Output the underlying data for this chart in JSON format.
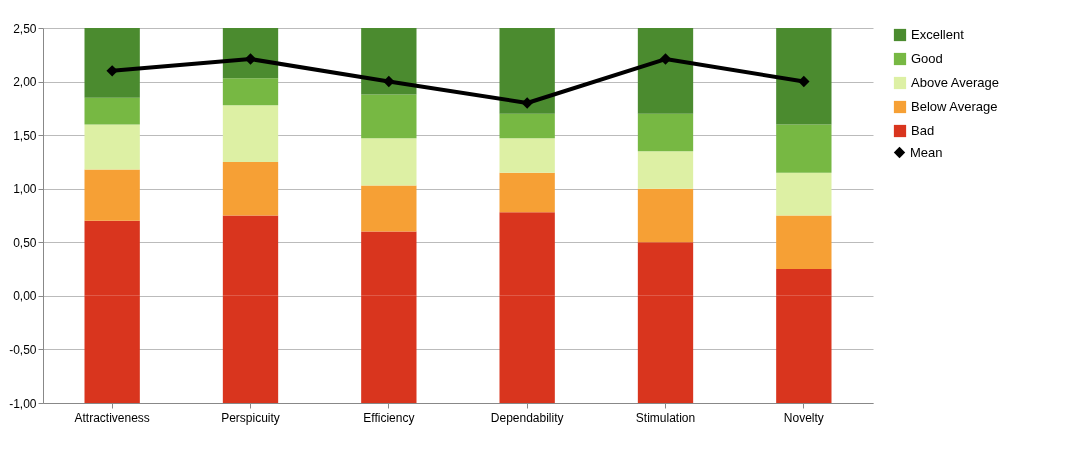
{
  "chart_data": {
    "type": "bar",
    "stacked": true,
    "categories": [
      "Attractiveness",
      "Perspicuity",
      "Efficiency",
      "Dependability",
      "Stimulation",
      "Novelty"
    ],
    "series": [
      {
        "color": "#d9351e",
        "values": [
          -1,
          -1,
          -1,
          -1,
          -1,
          -1
        ]
      },
      {
        "name": "Bad",
        "color": "#d9351e",
        "values": [
          0.7,
          0.75,
          0.6,
          0.78,
          0.5,
          0.25
        ]
      },
      {
        "name": "Below Average",
        "color": "#f6a035",
        "values": [
          0.48,
          0.5,
          0.43,
          0.37,
          0.5,
          0.5
        ]
      },
      {
        "name": "Above Average",
        "color": "#ddf0a4",
        "values": [
          0.42,
          0.53,
          0.44,
          0.32,
          0.35,
          0.4
        ]
      },
      {
        "name": "Good",
        "color": "#77b843",
        "values": [
          0.25,
          0.25,
          0.41,
          0.23,
          0.35,
          0.45
        ]
      },
      {
        "name": "Excellent",
        "color": "#4b8b2f",
        "values": [
          0.65,
          0.47,
          0.62,
          0.8,
          0.8,
          0.9
        ]
      },
      {
        "name": "Mean",
        "type": "line",
        "color": "#000000",
        "marker": "diamond",
        "values": [
          2.1,
          2.21,
          2.0,
          1.8,
          2.21,
          2.0
        ]
      }
    ],
    "ylim": [
      -1,
      2.5
    ],
    "yticks": [
      {
        "value": -1,
        "label": "-1,00"
      },
      {
        "value": -0.5,
        "label": "-0,50"
      },
      {
        "value": 0,
        "label": "0,00"
      },
      {
        "value": 0.5,
        "label": "0,50"
      },
      {
        "value": 1,
        "label": "1,00"
      },
      {
        "value": 1.5,
        "label": "1,50"
      },
      {
        "value": 2,
        "label": "2,00"
      },
      {
        "value": 2.5,
        "label": "2,50"
      }
    ],
    "grid": "y",
    "legend": "right"
  }
}
